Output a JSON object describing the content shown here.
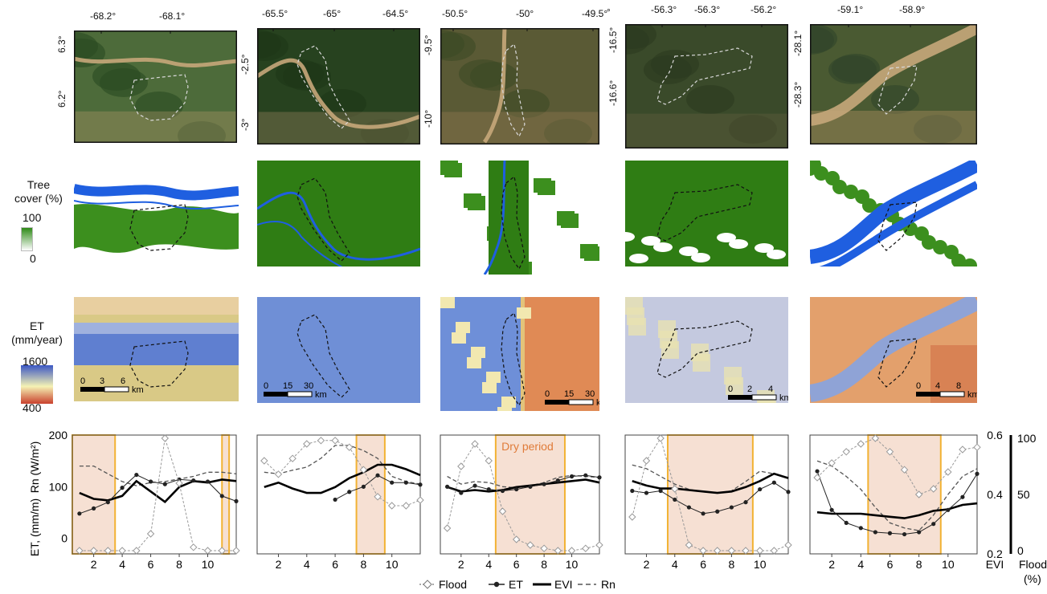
{
  "colorbars": {
    "tree_cover": {
      "label_line1": "Tree",
      "label_line2": "cover (%)",
      "max": "100",
      "min": "0",
      "colors": [
        "#2f8a18",
        "#ffffff"
      ]
    },
    "et": {
      "label_line1": "ET",
      "label_line2": "(mm/year)",
      "max": "1600",
      "min": "400",
      "colors": [
        "#3b57c4",
        "#f5f2b4",
        "#c9402c"
      ]
    }
  },
  "sites": [
    {
      "lon_ticks": [
        "-68.2°",
        "-68.1°"
      ],
      "lat_ticks": [
        "6.3°",
        "6.2°"
      ],
      "scale_ticks": [
        "0",
        "3",
        "6"
      ],
      "scale_unit": "km"
    },
    {
      "lon_ticks": [
        "-65.5°",
        "-65°",
        "-64.5°"
      ],
      "lat_ticks": [
        "-2.5°",
        "-3°"
      ],
      "scale_ticks": [
        "0",
        "15",
        "30"
      ],
      "scale_unit": "km"
    },
    {
      "lon_ticks": [
        "-50.5°",
        "-50°",
        "-49.5°"
      ],
      "lat_ticks": [
        "-9.5°",
        "-10°"
      ],
      "scale_ticks": [
        "0",
        "15",
        "30"
      ],
      "scale_unit": "km"
    },
    {
      "lon_ticks": [
        "-56.3°",
        "-56.3°",
        "-56.2°"
      ],
      "lat_ticks": [
        "-16.5°",
        "-16.6°"
      ],
      "scale_ticks": [
        "0",
        "2",
        "4"
      ],
      "scale_unit": "km"
    },
    {
      "lon_ticks": [
        "-59.1°",
        "-58.9°"
      ],
      "lat_ticks": [
        "-28.1°",
        "-28.3°"
      ],
      "scale_ticks": [
        "0",
        "4",
        "8"
      ],
      "scale_unit": "km"
    }
  ],
  "degree_mark": "°",
  "colors": {
    "flood": "#999999",
    "et": "#222222",
    "evi": "#000000",
    "rn": "#555555",
    "dry_fill": "#f6e0d3",
    "dry_border": "#f2b233",
    "river": "#1f5fe0"
  },
  "chart_data": {
    "type": "line",
    "x_ticks": [
      "2",
      "4",
      "6",
      "8",
      "10"
    ],
    "left_axis": {
      "label": "Rn (W/m²)",
      "label2": "ET, (mm/m)",
      "ticks": [
        "0",
        "100",
        "200"
      ],
      "range": [
        -30,
        200
      ]
    },
    "right_axis_evi": {
      "label": "EVI",
      "ticks": [
        "0.2",
        "0.4",
        "0.6"
      ],
      "range": [
        0.2,
        0.6
      ]
    },
    "right_axis_flood": {
      "label_line1": "Flood",
      "label_line2": "(%)",
      "ticks": [
        "0",
        "50",
        "100"
      ],
      "range": [
        0,
        100
      ]
    },
    "dry_period_label": "Dry period",
    "legend": [
      "Flood",
      "ET",
      "EVI",
      "Rn"
    ],
    "panels": [
      {
        "dry": [
          [
            0.5,
            3.5
          ],
          [
            11,
            11.5
          ]
        ],
        "flood": [
          0,
          0,
          0,
          0,
          0,
          15,
          100,
          60,
          3,
          0,
          0,
          0
        ],
        "et": [
          48,
          58,
          70,
          98,
          123,
          110,
          105,
          114,
          112,
          110,
          82,
          72
        ],
        "evi": [
          0.405,
          0.385,
          0.38,
          0.395,
          0.445,
          0.41,
          0.375,
          0.425,
          0.445,
          0.44,
          0.45,
          0.445
        ],
        "rn": [
          140,
          140,
          125,
          110,
          102,
          108,
          110,
          115,
          120,
          128,
          128,
          125
        ]
      },
      {
        "dry": [
          [
            7.5,
            9.5
          ]
        ],
        "flood": [
          80,
          68,
          82,
          95,
          98,
          98,
          92,
          72,
          48,
          40,
          40,
          45
        ],
        "et": [
          null,
          null,
          null,
          null,
          null,
          75,
          90,
          100,
          122,
          108,
          108,
          104
        ],
        "evi": [
          0.425,
          0.44,
          0.42,
          0.405,
          0.405,
          0.425,
          0.455,
          0.475,
          0.5,
          0.5,
          0.485,
          0.465
        ],
        "rn": [
          128,
          125,
          132,
          138,
          155,
          180,
          180,
          170,
          155,
          120,
          110,
          105
        ]
      },
      {
        "dry": [
          [
            4.5,
            9.5
          ]
        ],
        "flood": [
          20,
          75,
          95,
          80,
          35,
          10,
          5,
          2,
          0,
          0,
          2,
          5
        ],
        "et": [
          100,
          88,
          102,
          95,
          92,
          95,
          100,
          105,
          112,
          120,
          122,
          118
        ],
        "evi": [
          0.425,
          0.41,
          0.415,
          0.41,
          0.415,
          0.425,
          0.43,
          0.435,
          0.44,
          0.445,
          0.45,
          0.44
        ],
        "rn": [
          120,
          105,
          110,
          108,
          100,
          98,
          102,
          108,
          118,
          122,
          120,
          118
        ]
      },
      {
        "dry": [
          [
            3.5,
            9.5
          ]
        ],
        "flood": [
          30,
          80,
          100,
          55,
          5,
          0,
          0,
          0,
          0,
          0,
          0,
          5
        ],
        "et": [
          92,
          88,
          92,
          75,
          60,
          48,
          52,
          60,
          70,
          95,
          108,
          90
        ],
        "evi": [
          0.445,
          0.43,
          0.42,
          0.42,
          0.415,
          0.41,
          0.405,
          0.41,
          0.425,
          0.445,
          0.47,
          0.455
        ],
        "rn": [
          142,
          135,
          120,
          105,
          95,
          90,
          88,
          92,
          110,
          130,
          125,
          118
        ]
      },
      {
        "dry": [
          [
            4.5,
            9.5
          ]
        ],
        "flood": [
          65,
          78,
          88,
          95,
          100,
          88,
          72,
          50,
          55,
          70,
          90,
          92
        ],
        "et": [
          130,
          55,
          30,
          20,
          12,
          10,
          8,
          12,
          28,
          55,
          80,
          125
        ],
        "evi": [
          0.34,
          0.335,
          0.335,
          0.335,
          0.33,
          0.325,
          0.32,
          0.33,
          0.345,
          0.35,
          0.365,
          0.37
        ],
        "rn": [
          150,
          140,
          120,
          95,
          60,
          30,
          20,
          15,
          45,
          85,
          120,
          135
        ]
      }
    ]
  }
}
